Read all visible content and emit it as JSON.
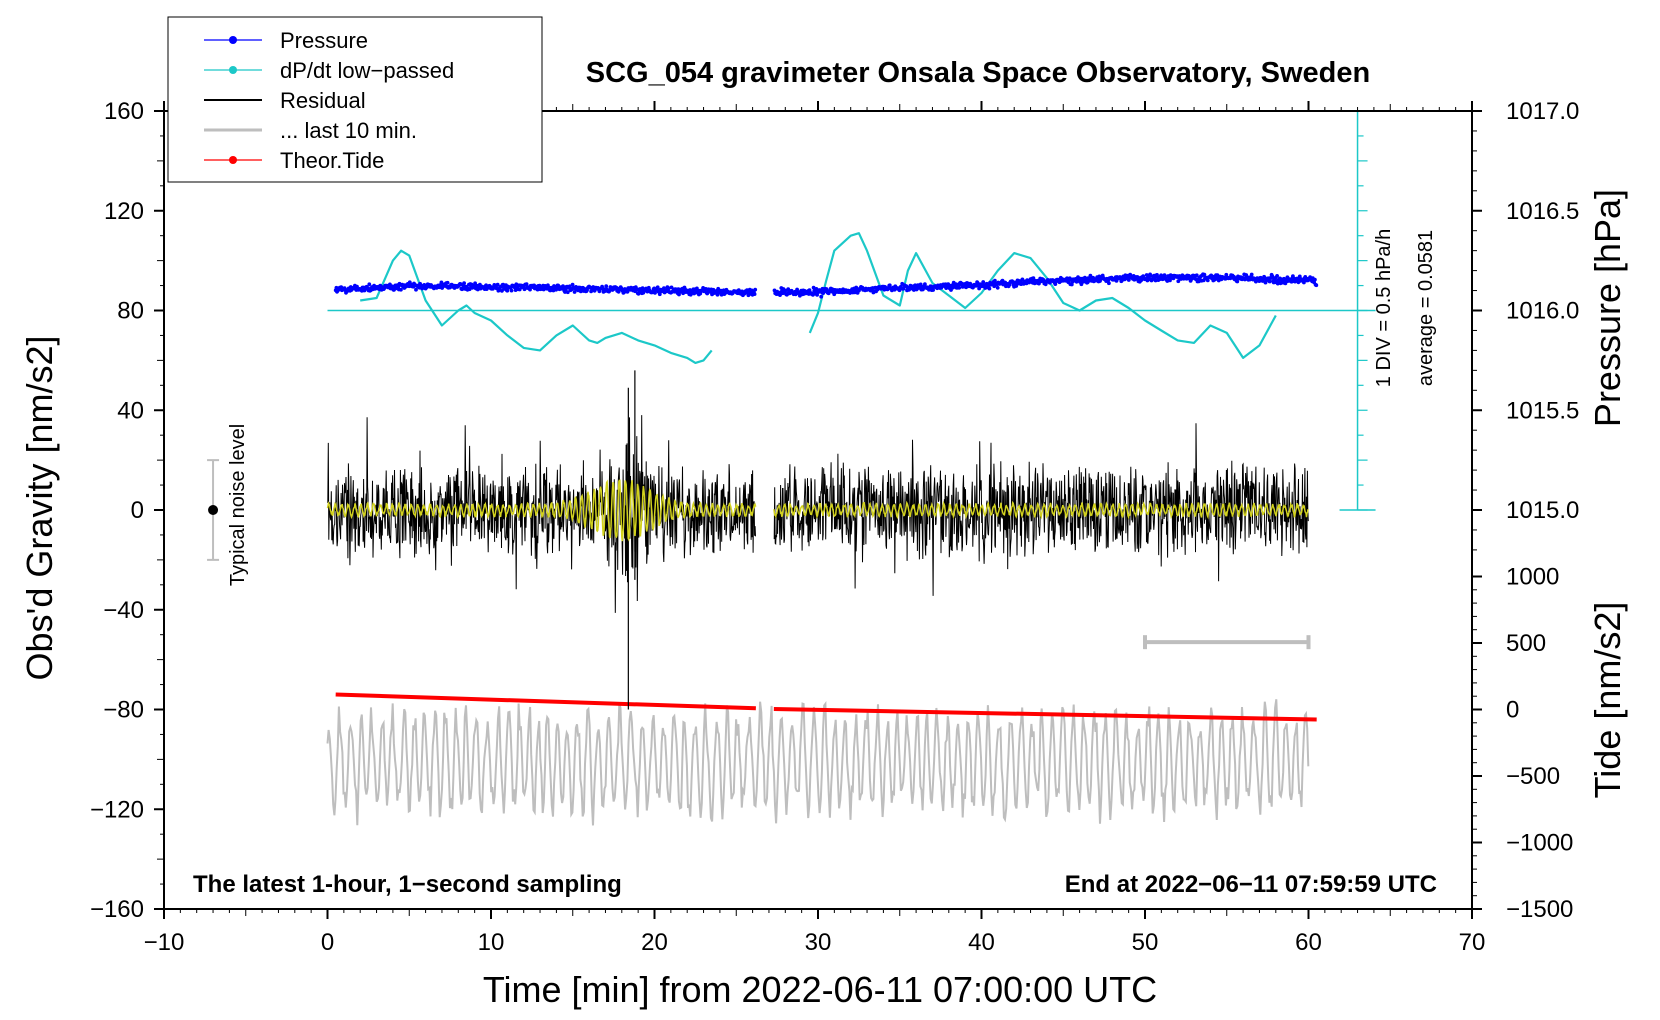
{
  "chart_data": {
    "type": "line",
    "title": "SCG_054 gravimeter Onsala Space Observatory, Sweden",
    "xlabel": "Time [min] from 2022-06-11 07:00:00 UTC",
    "ylabel_left": "Obs'd Gravity [nm/s2]",
    "ylabel_right_top": "Pressure [hPa]",
    "ylabel_right_bottom": "Tide [nm/s2]",
    "xlim": [
      -10,
      70
    ],
    "ylim_left": [
      -160,
      160
    ],
    "x_ticks": [
      "−10",
      "0",
      "10",
      "20",
      "30",
      "40",
      "50",
      "60",
      "70"
    ],
    "x_tick_values": [
      -10,
      0,
      10,
      20,
      30,
      40,
      50,
      60,
      70
    ],
    "y_left_ticks": [
      "160",
      "120",
      "80",
      "40",
      "0",
      "−40",
      "−80",
      "−120",
      "−160"
    ],
    "y_left_tick_values": [
      160,
      120,
      80,
      40,
      0,
      -40,
      -80,
      -120,
      -160
    ],
    "pressure_ticks": [
      "1017.0",
      "1016.5",
      "1016.0",
      "1015.5",
      "1015.0"
    ],
    "pressure_tick_values": [
      1017.0,
      1016.5,
      1016.0,
      1015.5,
      1015.0
    ],
    "pressure_axis_map": {
      "hPa_at_80": 1016.0,
      "hPa_per_nms2": 0.0125
    },
    "tide_ticks": [
      "1000",
      "500",
      "0",
      "−500",
      "−1000",
      "−1500"
    ],
    "tide_tick_values": [
      1000,
      500,
      0,
      -500,
      -1000,
      -1500
    ],
    "tide_axis_map": {
      "tide_at_-160": -1500,
      "tide_per_nms2": 18.75
    },
    "legend": {
      "position": "top-left",
      "entries": [
        {
          "label": "Pressure",
          "color": "#0000ff",
          "marker": true
        },
        {
          "label": "dP/dt low−passed",
          "color": "#1cc8c8",
          "marker": true
        },
        {
          "label": "Residual",
          "color": "#000000",
          "marker": false
        },
        {
          "label": "... last 10 min.",
          "color": "#bebebe",
          "marker": false
        },
        {
          "label": "Theor.Tide",
          "color": "#ff0000",
          "marker": true
        }
      ]
    },
    "annotations": {
      "noise_label": "Typical noise level",
      "noise_bar": {
        "x": -7,
        "center": 0,
        "half_range": 20
      },
      "dpdt_scale": "1 DIV = 0.5 hPa/h",
      "dpdt_average": "average = 0.0581",
      "dpdt_scale_axis": {
        "x": 63,
        "from": 0,
        "to": 160,
        "baseline": 80
      },
      "footer_left": "The latest 1-hour, 1−second sampling",
      "footer_right": "End at 2022−06−11 07:59:59 UTC",
      "last10_bar": {
        "x_start": 50,
        "x_end": 60,
        "y": -53
      }
    },
    "gaps": [
      [
        26.2,
        27.3
      ]
    ],
    "series": [
      {
        "name": "Pressure",
        "color": "#0000ff",
        "x": [
          0.5,
          5,
          10,
          15,
          20,
          26.2,
          27.3,
          30,
          35,
          40,
          45,
          50,
          55,
          60.5
        ],
        "y": [
          88.5,
          89.8,
          89.5,
          88.8,
          88.0,
          87.2,
          87.0,
          87.5,
          89.0,
          90.5,
          92.0,
          93.2,
          93.0,
          92.0
        ]
      },
      {
        "name": "dP/dt low−passed",
        "color": "#1cc8c8",
        "segments": [
          {
            "x": [
              2,
              3,
              4,
              4.5,
              5,
              6,
              7,
              8,
              8.5,
              9,
              10,
              11,
              12,
              13,
              14,
              15,
              16,
              16.5,
              17,
              18,
              19,
              20,
              21,
              22,
              22.5,
              23,
              23.5
            ],
            "y": [
              84,
              85,
              100,
              104,
              102,
              84,
              74,
              80,
              82,
              79,
              76,
              70,
              65,
              64,
              70,
              74,
              68,
              67,
              69,
              71,
              68,
              66,
              63,
              61,
              59,
              60,
              64
            ]
          },
          {
            "x": [
              29.5,
              30,
              30.5,
              31,
              32,
              32.5,
              33,
              34,
              35,
              35.5,
              36,
              37,
              38,
              39,
              40,
              41,
              42,
              43,
              44,
              45,
              46,
              47,
              48,
              49,
              50,
              51,
              52,
              53,
              54,
              55,
              56,
              57,
              58
            ],
            "y": [
              71,
              79,
              92,
              104,
              110,
              111,
              104,
              86,
              82,
              96,
              103,
              91,
              86,
              81,
              87,
              96,
              103,
              101,
              93,
              83,
              80,
              84,
              85,
              81,
              76,
              72,
              68,
              67,
              74,
              71,
              61,
              66,
              78
            ]
          }
        ]
      },
      {
        "name": "Residual",
        "color": "#000000",
        "x_range": [
          0,
          60
        ],
        "typical_amplitude": 18,
        "peak_x": 18.5,
        "peak_values": [
          56,
          -80
        ]
      },
      {
        "name": "Residual smoothed",
        "color": "#d2d21e",
        "x_range": [
          0,
          60
        ],
        "typical_amplitude": 3,
        "peak_x": 18,
        "peak_amplitude": 10
      },
      {
        "name": "... last 10 min.",
        "color": "#bebebe",
        "x_range": [
          0,
          60
        ],
        "center": -101,
        "amplitude": 20
      },
      {
        "name": "Theor.Tide",
        "color": "#ff0000",
        "x": [
          0.5,
          26.2,
          27.3,
          60.5
        ],
        "y": [
          -74,
          -79.5,
          -79.8,
          -84
        ]
      }
    ]
  }
}
